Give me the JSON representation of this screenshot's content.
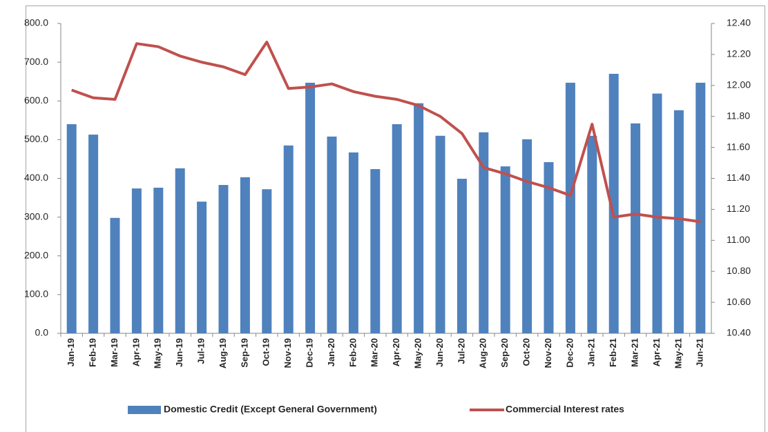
{
  "chart_data": {
    "type": "bar_line",
    "categories": [
      "Jan-19",
      "Feb-19",
      "Mar-19",
      "Apr-19",
      "May-19",
      "Jun-19",
      "Jul-19",
      "Aug-19",
      "Sep-19",
      "Oct-19",
      "Nov-19",
      "Dec-19",
      "Jan-20",
      "Feb-20",
      "Mar-20",
      "Apr-20",
      "May-20",
      "Jun-20",
      "Jul-20",
      "Aug-20",
      "Sep-20",
      "Oct-20",
      "Nov-20",
      "Dec-20",
      "Jan-21",
      "Feb-21",
      "Mar-21",
      "Apr-21",
      "May-21",
      "Jun-21"
    ],
    "series": [
      {
        "name": "Domestic Credit (Except General Government)",
        "type": "bar",
        "color": "#4f81bd",
        "values": [
          540,
          513,
          298,
          374,
          376,
          426,
          340,
          383,
          403,
          372,
          485,
          647,
          508,
          467,
          424,
          540,
          594,
          510,
          399,
          519,
          431,
          501,
          442,
          647,
          510,
          670,
          542,
          619,
          576,
          647
        ]
      },
      {
        "name": "Commercial Interest rates",
        "type": "line",
        "axis": "y2",
        "color": "#c0504d",
        "values": [
          11.97,
          11.92,
          11.91,
          12.27,
          12.25,
          12.19,
          12.15,
          12.12,
          12.07,
          12.28,
          11.98,
          11.99,
          12.01,
          11.96,
          11.93,
          11.91,
          11.87,
          11.8,
          11.69,
          11.47,
          11.43,
          11.38,
          11.34,
          11.29,
          11.75,
          11.15,
          11.17,
          11.15,
          11.14,
          11.12
        ]
      }
    ],
    "ylim": [
      0,
      800
    ],
    "yticks": [
      {
        "value": 0,
        "label": "0.0"
      },
      {
        "value": 100,
        "label": "100.0"
      },
      {
        "value": 200,
        "label": "200.0"
      },
      {
        "value": 300,
        "label": "300.0"
      },
      {
        "value": 400,
        "label": "400.0"
      },
      {
        "value": 500,
        "label": "500.0"
      },
      {
        "value": 600,
        "label": "600.0"
      },
      {
        "value": 700,
        "label": "700.0"
      },
      {
        "value": 800,
        "label": "800.0"
      }
    ],
    "y2lim": [
      10.4,
      12.4
    ],
    "y2ticks": [
      {
        "value": 10.4,
        "label": "10.40"
      },
      {
        "value": 10.6,
        "label": "10.60"
      },
      {
        "value": 10.8,
        "label": "10.80"
      },
      {
        "value": 11.0,
        "label": "11.00"
      },
      {
        "value": 11.2,
        "label": "11.20"
      },
      {
        "value": 11.4,
        "label": "11.40"
      },
      {
        "value": 11.6,
        "label": "11.60"
      },
      {
        "value": 11.8,
        "label": "11.80"
      },
      {
        "value": 12.0,
        "label": "12.00"
      },
      {
        "value": 12.2,
        "label": "12.20"
      },
      {
        "value": 12.4,
        "label": "12.40"
      }
    ],
    "legend": "bottom"
  }
}
